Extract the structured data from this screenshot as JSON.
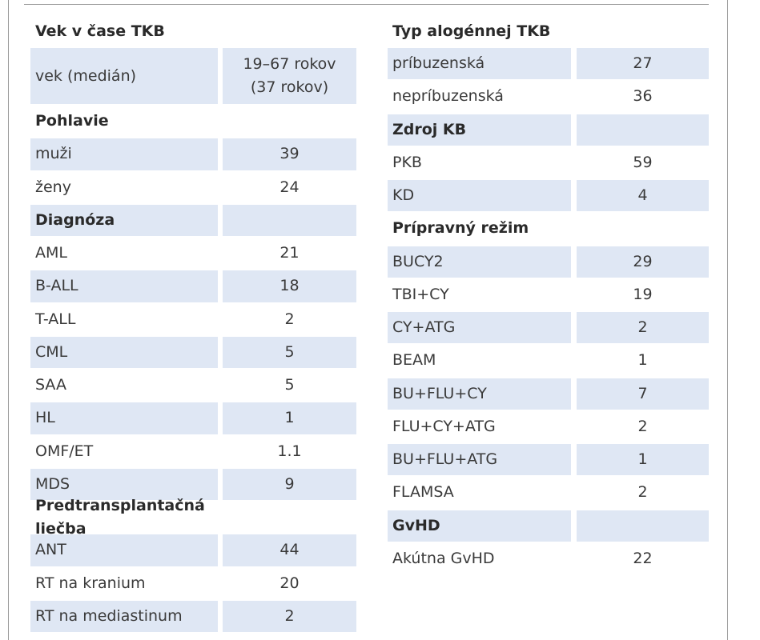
{
  "left": [
    {
      "title": "Vek v čase TKB",
      "rows": [
        {
          "label": "vek (medián)",
          "value": "19–67 rokov\n(37 rokov)"
        }
      ]
    },
    {
      "title": "Pohlavie",
      "rows": [
        {
          "label": "muži",
          "value": 39
        },
        {
          "label": "ženy",
          "value": 24
        }
      ]
    },
    {
      "title": "Diagnóza",
      "rows": [
        {
          "label": "AML",
          "value": 21
        },
        {
          "label": "B-ALL",
          "value": 18
        },
        {
          "label": "T-ALL",
          "value": 2
        },
        {
          "label": "CML",
          "value": 5
        },
        {
          "label": "SAA",
          "value": 5
        },
        {
          "label": "HL",
          "value": 1
        },
        {
          "label": "OMF/ET",
          "value": 1.1
        },
        {
          "label": "MDS",
          "value": 9
        }
      ]
    },
    {
      "title": "Predtransplantačná liečba",
      "rows": [
        {
          "label": "ANT",
          "value": 44
        },
        {
          "label": "RT na kranium",
          "value": 20
        },
        {
          "label": "RT na mediastinum",
          "value": 2
        }
      ]
    }
  ],
  "right": [
    {
      "title": "Typ alogénnej TKB",
      "rows": [
        {
          "label": "príbuzenská",
          "value": 27
        },
        {
          "label": "nepríbuzenská",
          "value": 36
        }
      ]
    },
    {
      "title": "Zdroj KB",
      "rows": [
        {
          "label": "PKB",
          "value": 59
        },
        {
          "label": "KD",
          "value": 4
        }
      ]
    },
    {
      "title": "Prípravný režim",
      "rows": [
        {
          "label": "BUCY2",
          "value": 29
        },
        {
          "label": "TBI+CY",
          "value": 19
        },
        {
          "label": "CY+ATG",
          "value": 2
        },
        {
          "label": "BEAM",
          "value": 1
        },
        {
          "label": "BU+FLU+CY",
          "value": 7
        },
        {
          "label": "FLU+CY+ATG",
          "value": 2
        },
        {
          "label": "BU+FLU+ATG",
          "value": 1
        },
        {
          "label": "FLAMSA",
          "value": 2
        }
      ]
    },
    {
      "title": "GvHD",
      "rows": [
        {
          "label": "Akútna GvHD",
          "value": 22
        }
      ]
    }
  ]
}
